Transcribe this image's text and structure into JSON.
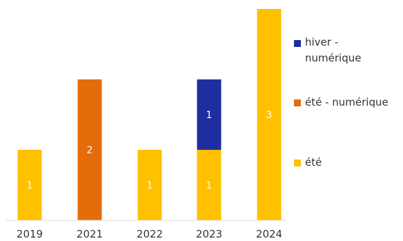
{
  "chart_data": {
    "type": "bar",
    "stacked": true,
    "categories": [
      "2019",
      "2021",
      "2022",
      "2023",
      "2024"
    ],
    "series": [
      {
        "name": "été",
        "color": "#FFC000",
        "values": [
          1,
          0,
          1,
          1,
          3
        ]
      },
      {
        "name": "été - numérique",
        "color": "#E46C0A",
        "values": [
          0,
          2,
          0,
          0,
          0
        ]
      },
      {
        "name": "hiver - numérique",
        "color": "#1F2E9E",
        "values": [
          0,
          0,
          0,
          1,
          0
        ]
      }
    ],
    "legend": {
      "position": "right",
      "entries": [
        {
          "lines": [
            "hiver -",
            "numérique"
          ],
          "color": "#1F2E9E"
        },
        {
          "lines": [
            "été - numérique"
          ],
          "color": "#E46C0A"
        },
        {
          "lines": [
            "été"
          ],
          "color": "#FFC000"
        }
      ]
    },
    "ylim": [
      0,
      3
    ],
    "grid": false,
    "data_labels": true,
    "title": "",
    "xlabel": "",
    "ylabel": ""
  }
}
